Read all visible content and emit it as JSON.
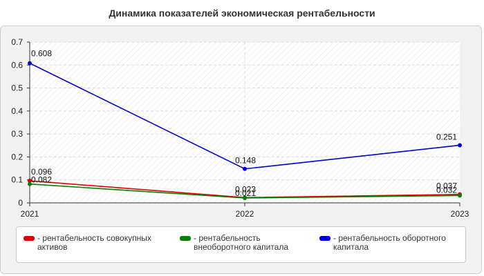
{
  "chart_data": {
    "type": "line",
    "title": "Динамика показателей экономическая рентабельности",
    "xlabel": "",
    "ylabel": "",
    "categories": [
      "2021",
      "2022",
      "2023"
    ],
    "ylim": [
      0,
      0.7
    ],
    "yticks": [
      "0",
      "0.1",
      "0.2",
      "0.3",
      "0.4",
      "0.5",
      "0.6",
      "0.7"
    ],
    "grid": true,
    "legend": "bottom",
    "series": [
      {
        "name": "- рентабельность совокупных активов",
        "color": "#e00000",
        "values": [
          0.096,
          0.023,
          0.037
        ],
        "labels": [
          "0.096",
          "0.023",
          "0.037"
        ]
      },
      {
        "name": "- рентабельность внеоборотного капитала",
        "color": "#008000",
        "values": [
          0.082,
          0.021,
          0.032
        ],
        "labels": [
          "0.082",
          "0.021",
          "0.032"
        ]
      },
      {
        "name": "- рентабельность оборотного капитала",
        "color": "#0000cc",
        "values": [
          0.608,
          0.148,
          0.251
        ],
        "labels": [
          "0.608",
          "0.148",
          "0.251"
        ]
      }
    ]
  }
}
